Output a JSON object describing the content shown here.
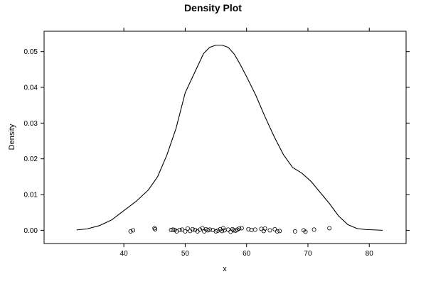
{
  "chart_data": {
    "type": "line",
    "title": "Density Plot",
    "xlabel": "x",
    "ylabel": "Density",
    "xlim": [
      27,
      86
    ],
    "ylim": [
      -0.0037,
      0.0557
    ],
    "grid": false,
    "x_ticks": [
      40,
      50,
      60,
      70,
      80
    ],
    "x_tick_labels": [
      "40",
      "50",
      "60",
      "70",
      "80"
    ],
    "y_ticks": [
      0.0,
      0.01,
      0.02,
      0.03,
      0.04,
      0.05
    ],
    "y_tick_labels": [
      "0.00",
      "0.01",
      "0.02",
      "0.03",
      "0.04",
      "0.05"
    ],
    "density_curve": {
      "x": [
        32.3,
        34,
        36,
        38,
        40,
        42,
        44,
        45.5,
        47,
        48.5,
        50,
        51.5,
        53,
        54,
        55,
        56,
        57,
        58,
        59,
        60,
        61.5,
        63,
        64.5,
        66,
        67.5,
        69,
        70.5,
        72,
        73.5,
        75,
        76.5,
        78,
        79.5,
        81,
        82.2
      ],
      "y": [
        0.0001,
        0.0004,
        0.0013,
        0.0029,
        0.0055,
        0.0081,
        0.0113,
        0.015,
        0.021,
        0.0285,
        0.0385,
        0.044,
        0.0495,
        0.0512,
        0.0518,
        0.0518,
        0.0512,
        0.0493,
        0.0463,
        0.043,
        0.0378,
        0.0318,
        0.0262,
        0.0212,
        0.0176,
        0.016,
        0.0137,
        0.0106,
        0.0075,
        0.004,
        0.0016,
        0.0005,
        0.0002,
        0.0001,
        0.0
      ]
    },
    "points": {
      "x": [
        41.1,
        41.5,
        45.0,
        45.1,
        47.7,
        48.0,
        48.3,
        48.6,
        49.1,
        49.5,
        50.0,
        50.4,
        50.8,
        51.2,
        51.6,
        52.0,
        52.4,
        52.8,
        53.1,
        53.4,
        53.7,
        54.0,
        54.5,
        55.0,
        55.3,
        55.7,
        56.0,
        56.2,
        56.4,
        57.0,
        57.4,
        57.7,
        57.9,
        58.2,
        58.5,
        58.8,
        59.2,
        60.3,
        60.8,
        61.4,
        62.4,
        62.8,
        63.0,
        63.8,
        64.6,
        65.0,
        65.4,
        67.9,
        69.3,
        69.6,
        71.0,
        73.5
      ],
      "y": [
        -0.0003,
        0.0,
        0.0006,
        0.0003,
        0.0001,
        0.0002,
        0.0001,
        -0.0003,
        0.0001,
        0.0002,
        -0.0003,
        0.0005,
        -0.0002,
        0.0003,
        0.0001,
        -0.0003,
        0.0002,
        0.0006,
        -0.0003,
        0.0003,
        0.0,
        0.0002,
        0.0001,
        -0.0003,
        -0.0001,
        0.0003,
        -0.0002,
        0.0006,
        0.0,
        0.0002,
        -0.0004,
        0.0003,
        0.0,
        -0.0001,
        0.0002,
        0.0005,
        0.0006,
        0.0003,
        0.0001,
        0.0002,
        0.0004,
        -0.0002,
        0.0005,
        0.0,
        0.0003,
        -0.0003,
        -0.0002,
        -0.0003,
        0.0,
        -0.0004,
        0.0002,
        0.0006
      ]
    }
  }
}
